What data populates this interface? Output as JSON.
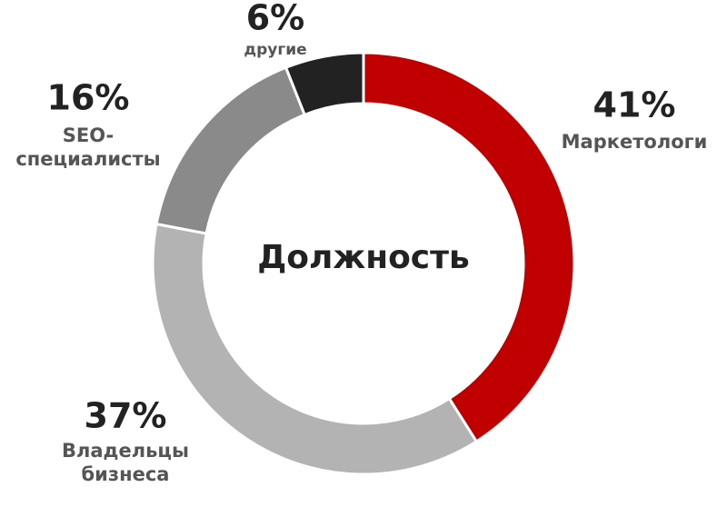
{
  "chart_data": {
    "type": "donut",
    "title": "Должность",
    "categories": [
      "Маркетологи",
      "Владельцы\nбизнеса",
      "SEO-\nспециалисты",
      "другие"
    ],
    "values": [
      41,
      37,
      16,
      6
    ],
    "value_labels": [
      "41%",
      "37%",
      "16%",
      "6%"
    ],
    "colors": [
      "#c00000",
      "#b3b3b3",
      "#8a8a8a",
      "#222222"
    ]
  }
}
